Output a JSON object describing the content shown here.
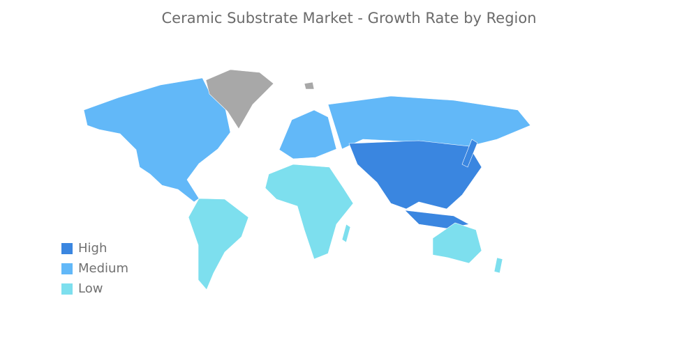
{
  "title": "Ceramic Substrate Market - Growth Rate by Region",
  "legend": [
    {
      "label": "High",
      "color": "#3a86e0"
    },
    {
      "label": "Medium",
      "color": "#62b8f8"
    },
    {
      "label": "Low",
      "color": "#7ddfee"
    }
  ],
  "no_data_color": "#a8a8a8",
  "regions": [
    {
      "name": "North America",
      "level": "Medium"
    },
    {
      "name": "Europe",
      "level": "Medium"
    },
    {
      "name": "Russia",
      "level": "Medium"
    },
    {
      "name": "Asia-Pacific",
      "level": "High"
    },
    {
      "name": "South America",
      "level": "Low"
    },
    {
      "name": "Middle East and Africa",
      "level": "Low"
    },
    {
      "name": "Australia and New Zealand",
      "level": "Low"
    },
    {
      "name": "Greenland",
      "level": null
    }
  ]
}
